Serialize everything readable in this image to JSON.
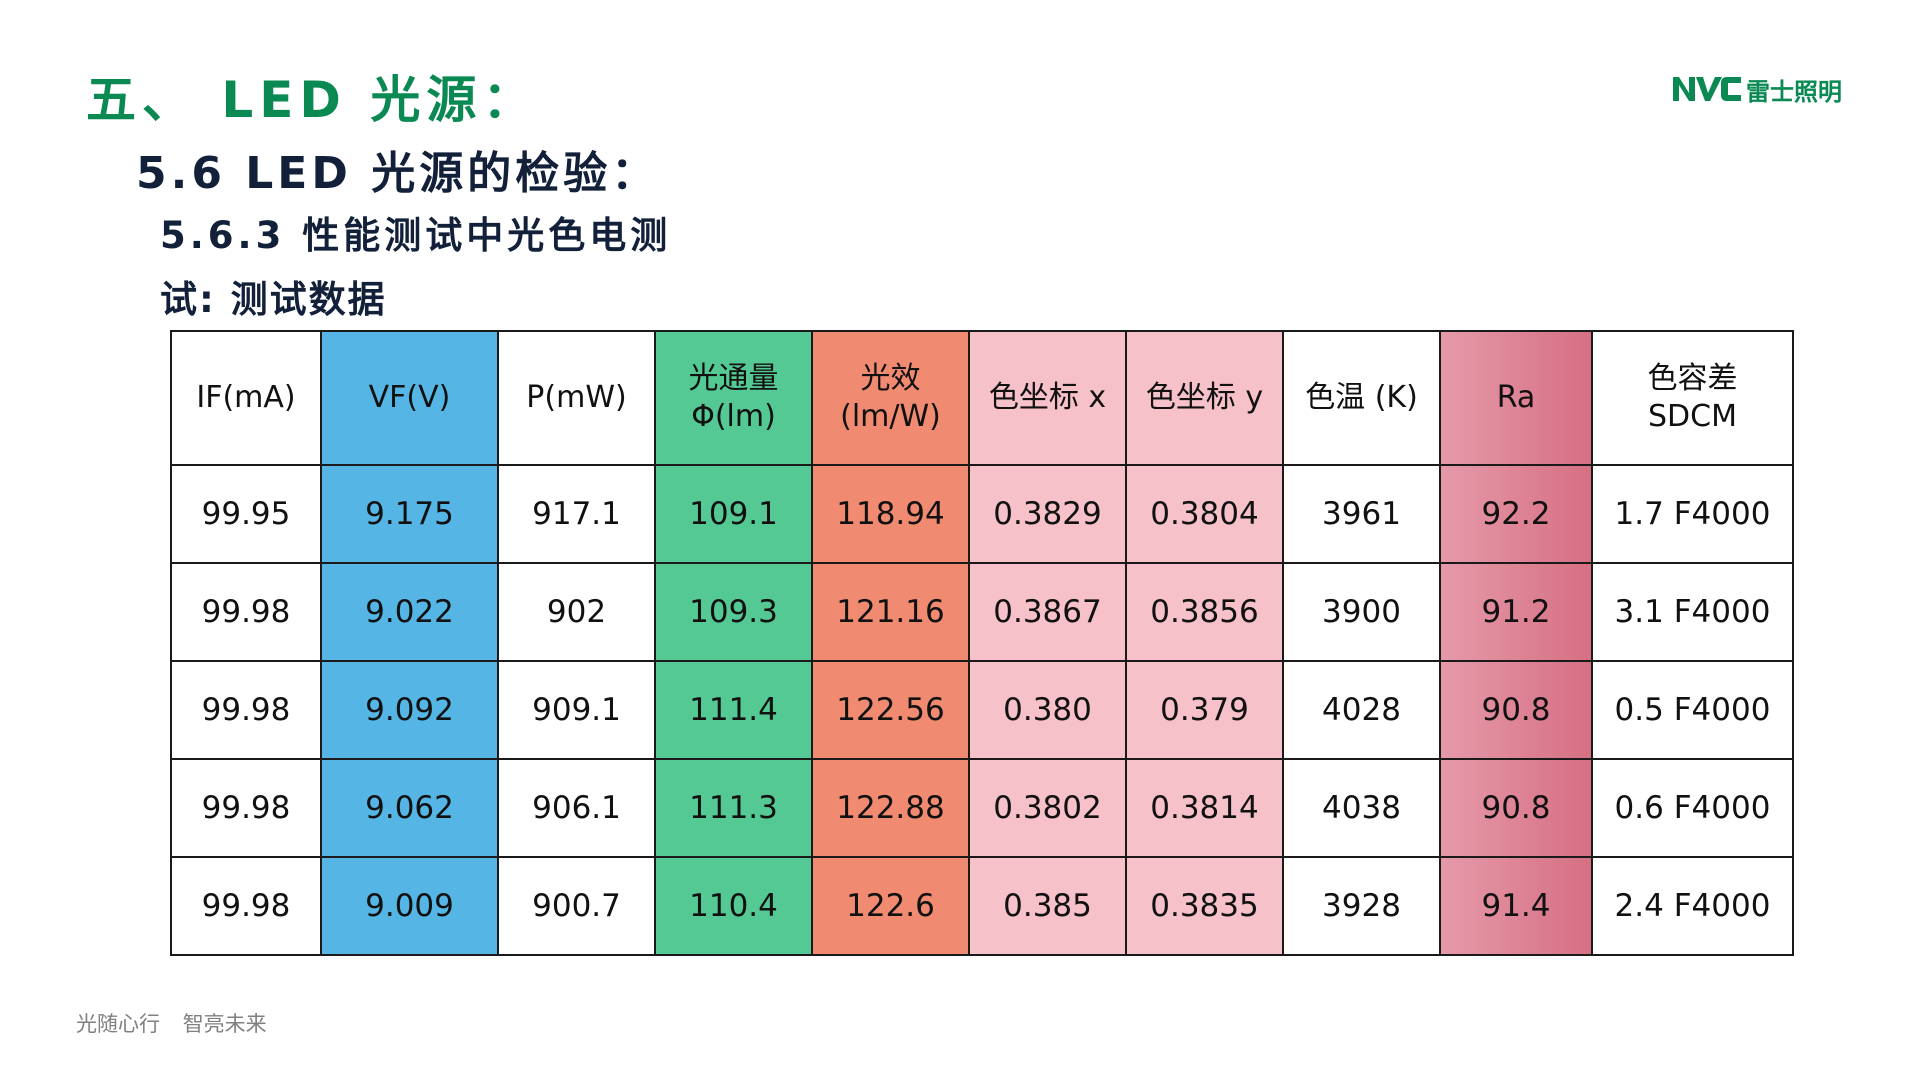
{
  "title": {
    "main": "五、 LED 光源：",
    "sub": "5.6 LED 光源的检验：",
    "sub2": "5.6.3  性能测试中光色电测",
    "sub3": "试: 测试数据"
  },
  "logo": {
    "mark": "NVC",
    "text": "雷士照明",
    "color": "#0a8a52"
  },
  "table": {
    "columns": [
      {
        "lines": [
          "IF(mA)"
        ],
        "bg": "#ffffff"
      },
      {
        "lines": [
          "VF(V)"
        ],
        "bg": "#55b6e6"
      },
      {
        "lines": [
          "P(mW)"
        ],
        "bg": "#ffffff"
      },
      {
        "lines": [
          "光通量",
          "Φ(lm)"
        ],
        "bg": "#55c994"
      },
      {
        "lines": [
          "光效",
          "(lm/W)"
        ],
        "bg": "#f08a70"
      },
      {
        "lines": [
          "色坐标  x"
        ],
        "bg": "#f6c1c9"
      },
      {
        "lines": [
          "色坐标  y"
        ],
        "bg": "#f6c1c9"
      },
      {
        "lines": [
          "色温 (K)"
        ],
        "bg": "#ffffff"
      },
      {
        "lines": [
          "Ra"
        ],
        "bg": "#e0889a"
      },
      {
        "lines": [
          "色容差",
          "SDCM"
        ],
        "bg": "#ffffff"
      }
    ],
    "rows": [
      [
        "99.95",
        "9.175",
        "917.1",
        "109.1",
        "118.94",
        "0.3829",
        "0.3804",
        "3961",
        "92.2",
        "1.7 F4000"
      ],
      [
        "99.98",
        "9.022",
        "902",
        "109.3",
        "121.16",
        "0.3867",
        "0.3856",
        "3900",
        "91.2",
        "3.1 F4000"
      ],
      [
        "99.98",
        "9.092",
        "909.1",
        "111.4",
        "122.56",
        "0.380",
        "0.379",
        "4028",
        "90.8",
        "0.5 F4000"
      ],
      [
        "99.98",
        "9.062",
        "906.1",
        "111.3",
        "122.88",
        "0.3802",
        "0.3814",
        "4038",
        "90.8",
        "0.6 F4000"
      ],
      [
        "99.98",
        "9.009",
        "900.7",
        "110.4",
        "122.6",
        "0.385",
        "0.3835",
        "3928",
        "91.4",
        "2.4 F4000"
      ]
    ]
  },
  "footer": {
    "slogan1": "光随心行",
    "slogan2": "智亮未来"
  }
}
